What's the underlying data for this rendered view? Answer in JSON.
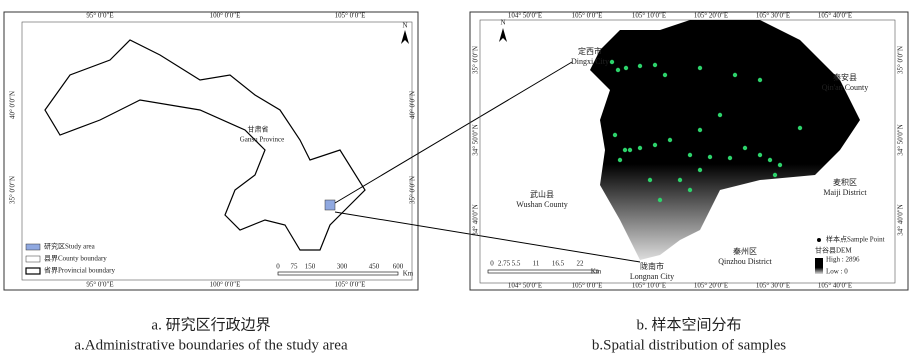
{
  "panel_a": {
    "top_ticks": [
      "95° 0′0″E",
      "100° 0′0″E",
      "105° 0′0″E"
    ],
    "side_ticks": [
      "40° 0′0″N",
      "35° 0′0″N"
    ],
    "north": "N",
    "province_label": "甘肃省",
    "province_label_en": "Gansu Province",
    "legend": [
      "研究区Study area",
      "县界County boundary",
      "省界Provincial boundary"
    ],
    "scale_labels": [
      "0",
      "75",
      "150",
      "300",
      "450",
      "600"
    ],
    "scale_unit": "Km",
    "caption_cn": "a. 研究区行政边界",
    "caption_en": "a.Administrative boundaries of the study area"
  },
  "panel_b": {
    "top_ticks": [
      "104° 50′0″E",
      "105° 0′0″E",
      "105° 10′0″E",
      "105° 20′0″E",
      "105° 30′0″E",
      "105° 40′0″E"
    ],
    "side_ticks": [
      "35° 0′0″N",
      "34° 50′0″N",
      "34° 40′0″N"
    ],
    "north": "N",
    "places": [
      {
        "cn": "定西市",
        "en": "Dingxi City"
      },
      {
        "cn": "秦安县",
        "en": "Qin'an County"
      },
      {
        "cn": "武山县",
        "en": "Wushan County"
      },
      {
        "cn": "麦积区",
        "en": "Maiji District"
      },
      {
        "cn": "秦州区",
        "en": "Qinzhou District"
      },
      {
        "cn": "陇南市",
        "en": "Longnan City"
      }
    ],
    "legend_point": "样本点Sample Point",
    "legend_dem": "甘谷县DEM",
    "legend_high": "High : 2896",
    "legend_low": "Low : 0",
    "scale_labels": [
      "0",
      "2.75",
      "5.5",
      "11",
      "16.5",
      "22"
    ],
    "scale_unit": "Km",
    "caption_cn": "b. 样本空间分布",
    "caption_en": "b.Spatial distribution of samples"
  }
}
